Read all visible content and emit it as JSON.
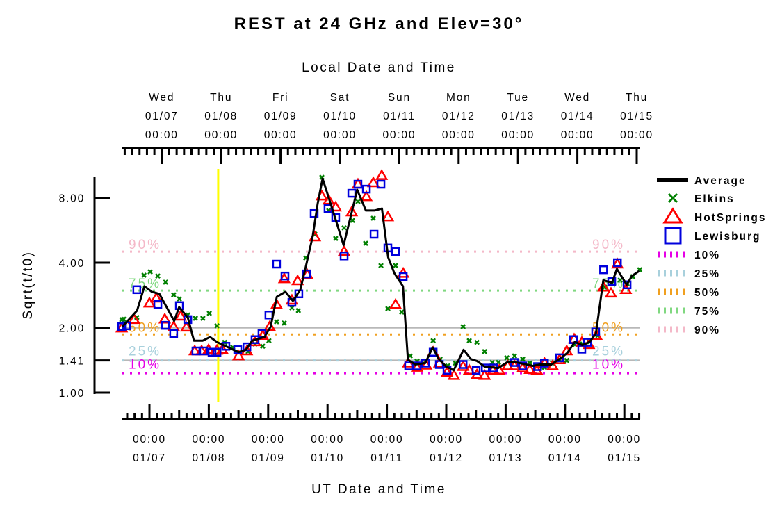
{
  "chart_data": {
    "type": "line",
    "title": "REST at 24 GHz and Elev=30°",
    "top_xlabel": "Local Date and Time",
    "xlabel": "UT Date and Time",
    "ylabel": "Sqrt(t/t0)",
    "yscale": "log",
    "xlim_hours": [
      -11,
      198
    ],
    "ylim": [
      1.0,
      9.9
    ],
    "yticks": [
      {
        "value": 8.0,
        "label": "8.00"
      },
      {
        "value": 4.0,
        "label": "4.00"
      },
      {
        "value": 2.0,
        "label": "2.00"
      },
      {
        "value": 1.41,
        "label": "1.41"
      },
      {
        "value": 1.0,
        "label": "1.00"
      }
    ],
    "top_ticks": [
      {
        "hour": 5,
        "day": "Wed",
        "date": "01/07",
        "time": "00:00"
      },
      {
        "hour": 29,
        "day": "Thu",
        "date": "01/08",
        "time": "00:00"
      },
      {
        "hour": 53,
        "day": "Fri",
        "date": "01/09",
        "time": "00:00"
      },
      {
        "hour": 77,
        "day": "Sat",
        "date": "01/10",
        "time": "00:00"
      },
      {
        "hour": 101,
        "day": "Sun",
        "date": "01/11",
        "time": "00:00"
      },
      {
        "hour": 125,
        "day": "Mon",
        "date": "01/12",
        "time": "00:00"
      },
      {
        "hour": 149,
        "day": "Tue",
        "date": "01/13",
        "time": "00:00"
      },
      {
        "hour": 173,
        "day": "Wed",
        "date": "01/14",
        "time": "00:00"
      },
      {
        "hour": 197,
        "day": "Thu",
        "date": "01/15",
        "time": "00:00"
      }
    ],
    "bottom_ticks": [
      {
        "hour": 0,
        "time": "00:00",
        "date": "01/07"
      },
      {
        "hour": 24,
        "time": "00:00",
        "date": "01/08"
      },
      {
        "hour": 48,
        "time": "00:00",
        "date": "01/09"
      },
      {
        "hour": 72,
        "time": "00:00",
        "date": "01/10"
      },
      {
        "hour": 96,
        "time": "00:00",
        "date": "01/11"
      },
      {
        "hour": 120,
        "time": "00:00",
        "date": "01/12"
      },
      {
        "hour": 144,
        "time": "00:00",
        "date": "01/13"
      },
      {
        "hour": 168,
        "time": "00:00",
        "date": "01/14"
      },
      {
        "hour": 192,
        "time": "00:00",
        "date": "01/15"
      }
    ],
    "reference_lines": [
      2.0,
      1.41
    ],
    "current_time_marker_hour": 27.8,
    "percentiles": [
      {
        "name": "10%",
        "label": "10%",
        "value": 1.23,
        "color": "#e600e6"
      },
      {
        "name": "25%",
        "label": "25%",
        "value": 1.41,
        "color": "#a8d0dc"
      },
      {
        "name": "50%",
        "label": "50%",
        "value": 1.86,
        "color": "#f0a020"
      },
      {
        "name": "75%",
        "label": "75%",
        "value": 2.97,
        "color": "#80d880"
      },
      {
        "name": "90%",
        "label": "90%",
        "value": 4.5,
        "color": "#f4b8c8"
      }
    ],
    "series": [
      {
        "name": "Average",
        "marker": "line",
        "color": "#000000",
        "points": [
          [
            -11,
            2.02
          ],
          [
            -5,
            2.4
          ],
          [
            -2,
            3.11
          ],
          [
            1,
            2.93
          ],
          [
            4,
            2.87
          ],
          [
            10,
            2.15
          ],
          [
            12,
            2.49
          ],
          [
            15.5,
            2.23
          ],
          [
            18,
            1.74
          ],
          [
            21.5,
            1.74
          ],
          [
            24.5,
            1.81
          ],
          [
            27.5,
            1.71
          ],
          [
            36,
            1.54
          ],
          [
            39,
            1.58
          ],
          [
            41.5,
            1.74
          ],
          [
            46.5,
            1.81
          ],
          [
            49,
            2.02
          ],
          [
            51.5,
            2.78
          ],
          [
            55,
            2.93
          ],
          [
            58,
            2.66
          ],
          [
            61,
            3.0
          ],
          [
            63,
            3.74
          ],
          [
            66,
            5.3
          ],
          [
            68,
            7.5
          ],
          [
            70,
            9.81
          ],
          [
            74.5,
            6.77
          ],
          [
            78.5,
            4.82
          ],
          [
            84,
            8.71
          ],
          [
            87.5,
            6.98
          ],
          [
            91,
            6.98
          ],
          [
            94,
            7.13
          ],
          [
            96.5,
            4.24
          ],
          [
            99,
            3.58
          ],
          [
            102.5,
            3.11
          ],
          [
            104.5,
            1.42
          ],
          [
            107.5,
            1.35
          ],
          [
            111.5,
            1.37
          ],
          [
            114.5,
            1.62
          ],
          [
            117,
            1.43
          ],
          [
            120,
            1.32
          ],
          [
            123,
            1.27
          ],
          [
            127,
            1.58
          ],
          [
            130,
            1.43
          ],
          [
            132.5,
            1.4
          ],
          [
            135.5,
            1.32
          ],
          [
            141,
            1.3
          ],
          [
            144.5,
            1.38
          ],
          [
            148.5,
            1.38
          ],
          [
            155,
            1.33
          ],
          [
            158,
            1.35
          ],
          [
            162.5,
            1.35
          ],
          [
            166.5,
            1.45
          ],
          [
            169,
            1.53
          ],
          [
            172,
            1.72
          ],
          [
            175,
            1.66
          ],
          [
            178,
            1.72
          ],
          [
            180.5,
            1.88
          ],
          [
            183.5,
            3.32
          ],
          [
            187,
            3.23
          ],
          [
            189,
            3.74
          ],
          [
            193,
            3.16
          ],
          [
            195,
            3.47
          ],
          [
            198,
            3.66
          ]
        ]
      },
      {
        "name": "Elkins",
        "marker": "x",
        "color": "#008000",
        "points": [
          [
            -11.2,
            2.18
          ],
          [
            -10.4,
            2.19
          ],
          [
            -5.1,
            2.23
          ],
          [
            -2.2,
            3.5
          ],
          [
            0.3,
            3.63
          ],
          [
            3.4,
            3.47
          ],
          [
            6.5,
            3.25
          ],
          [
            9.8,
            2.84
          ],
          [
            12.1,
            2.72
          ],
          [
            15.5,
            2.29
          ],
          [
            18.6,
            2.21
          ],
          [
            21.6,
            2.21
          ],
          [
            24.2,
            2.33
          ],
          [
            27.3,
            2.04
          ],
          [
            30.4,
            1.71
          ],
          [
            33.7,
            1.62
          ],
          [
            36.5,
            1.54
          ],
          [
            39.9,
            1.55
          ],
          [
            42.7,
            1.68
          ],
          [
            45.8,
            1.64
          ],
          [
            48.3,
            1.74
          ],
          [
            51.4,
            2.13
          ],
          [
            54.5,
            2.1
          ],
          [
            57.6,
            2.47
          ],
          [
            60.2,
            2.4
          ],
          [
            63.2,
            4.21
          ],
          [
            66.9,
            5.42
          ],
          [
            69.7,
            9.95
          ],
          [
            72.5,
            6.97
          ],
          [
            75.3,
            5.18
          ],
          [
            78.7,
            5.8
          ],
          [
            82.1,
            6.28
          ],
          [
            84.3,
            7.68
          ],
          [
            87.4,
            4.92
          ],
          [
            90.5,
            6.43
          ],
          [
            93.6,
            3.88
          ],
          [
            96.4,
            2.45
          ],
          [
            99.5,
            3.88
          ],
          [
            102.0,
            2.36
          ],
          [
            105.4,
            1.48
          ],
          [
            108.2,
            1.4
          ],
          [
            111.6,
            1.4
          ],
          [
            114.7,
            1.74
          ],
          [
            117.5,
            1.43
          ],
          [
            120.6,
            1.33
          ],
          [
            123.7,
            1.37
          ],
          [
            126.8,
            2.02
          ],
          [
            129.3,
            1.74
          ],
          [
            132.4,
            1.71
          ],
          [
            135.5,
            1.55
          ],
          [
            138.6,
            1.38
          ],
          [
            141.1,
            1.38
          ],
          [
            144.5,
            1.45
          ],
          [
            147.6,
            1.48
          ],
          [
            150.9,
            1.43
          ],
          [
            153.8,
            1.37
          ],
          [
            156.9,
            1.33
          ],
          [
            159.7,
            1.31
          ],
          [
            163.0,
            1.37
          ],
          [
            165.8,
            1.42
          ],
          [
            168.7,
            1.41
          ],
          [
            172.0,
            1.67
          ],
          [
            175.1,
            1.68
          ],
          [
            177.9,
            1.72
          ],
          [
            181.3,
            1.84
          ],
          [
            184.1,
            3.08
          ],
          [
            186.9,
            3.2
          ],
          [
            190.3,
            3.32
          ],
          [
            193.1,
            3.2
          ],
          [
            195.4,
            3.45
          ],
          [
            198.2,
            3.71
          ]
        ]
      },
      {
        "name": "HotSprings",
        "marker": "triangle",
        "color": "#ff0000",
        "points": [
          [
            -11.2,
            1.99
          ],
          [
            -6.2,
            2.18
          ],
          [
            0.0,
            2.6
          ],
          [
            2.8,
            2.74
          ],
          [
            6.2,
            2.19
          ],
          [
            9.8,
            2.02
          ],
          [
            12.6,
            2.26
          ],
          [
            14.9,
            2.01
          ],
          [
            18.3,
            1.56
          ],
          [
            21.1,
            1.56
          ],
          [
            23.9,
            1.58
          ],
          [
            27.3,
            1.57
          ],
          [
            29.5,
            1.58
          ],
          [
            36.0,
            1.48
          ],
          [
            39.4,
            1.56
          ],
          [
            42.7,
            1.72
          ],
          [
            45.8,
            1.84
          ],
          [
            48.6,
            2.02
          ],
          [
            51.4,
            2.56
          ],
          [
            54.5,
            3.37
          ],
          [
            57.6,
            2.68
          ],
          [
            59.9,
            3.3
          ],
          [
            63.8,
            3.52
          ],
          [
            66.9,
            5.26
          ],
          [
            69.7,
            8.14
          ],
          [
            72.5,
            7.79
          ],
          [
            75.3,
            7.24
          ],
          [
            78.7,
            4.5
          ],
          [
            81.8,
            6.87
          ],
          [
            84.3,
            9.24
          ],
          [
            87.7,
            8.08
          ],
          [
            90.5,
            9.38
          ],
          [
            93.9,
            10.13
          ],
          [
            96.4,
            6.52
          ],
          [
            99.5,
            2.56
          ],
          [
            102.6,
            3.57
          ],
          [
            104.6,
            1.37
          ],
          [
            108.2,
            1.31
          ],
          [
            111.9,
            1.34
          ],
          [
            114.7,
            1.54
          ],
          [
            117.2,
            1.37
          ],
          [
            120.3,
            1.24
          ],
          [
            123.1,
            1.2
          ],
          [
            126.8,
            1.32
          ],
          [
            129.3,
            1.27
          ],
          [
            132.4,
            1.21
          ],
          [
            135.5,
            1.2
          ],
          [
            138.9,
            1.27
          ],
          [
            141.4,
            1.27
          ],
          [
            144.8,
            1.33
          ],
          [
            147.6,
            1.33
          ],
          [
            150.9,
            1.3
          ],
          [
            153.8,
            1.28
          ],
          [
            156.6,
            1.27
          ],
          [
            159.7,
            1.37
          ],
          [
            163.0,
            1.33
          ],
          [
            165.8,
            1.42
          ],
          [
            168.7,
            1.56
          ],
          [
            171.7,
            1.77
          ],
          [
            174.8,
            1.71
          ],
          [
            177.7,
            1.67
          ],
          [
            180.7,
            1.84
          ],
          [
            183.6,
            3.08
          ],
          [
            186.6,
            2.89
          ],
          [
            189.2,
            3.94
          ],
          [
            192.6,
            3.0
          ]
        ]
      },
      {
        "name": "Lewisburg",
        "marker": "square",
        "color": "#0000dd",
        "points": [
          [
            -11.2,
            2.02
          ],
          [
            -9.3,
            2.04
          ],
          [
            -5.1,
            3.0
          ],
          [
            3.4,
            2.56
          ],
          [
            6.5,
            2.05
          ],
          [
            9.8,
            1.88
          ],
          [
            12.1,
            2.53
          ],
          [
            15.5,
            2.18
          ],
          [
            18.8,
            1.56
          ],
          [
            21.9,
            1.56
          ],
          [
            25.3,
            1.54
          ],
          [
            27.3,
            1.54
          ],
          [
            30.9,
            1.64
          ],
          [
            35.7,
            1.58
          ],
          [
            39.4,
            1.63
          ],
          [
            42.7,
            1.76
          ],
          [
            45.5,
            1.88
          ],
          [
            48.3,
            2.29
          ],
          [
            51.4,
            3.94
          ],
          [
            54.8,
            3.47
          ],
          [
            57.6,
            2.62
          ],
          [
            60.4,
            2.87
          ],
          [
            63.5,
            3.55
          ],
          [
            66.6,
            6.76
          ],
          [
            72.2,
            7.12
          ],
          [
            75.3,
            6.47
          ],
          [
            78.7,
            4.3
          ],
          [
            81.8,
            8.39
          ],
          [
            84.3,
            9.24
          ],
          [
            87.7,
            8.77
          ],
          [
            90.8,
            5.42
          ],
          [
            93.6,
            9.24
          ],
          [
            96.4,
            4.68
          ],
          [
            99.5,
            4.5
          ],
          [
            102.6,
            3.45
          ],
          [
            104.8,
            1.33
          ],
          [
            108.2,
            1.33
          ],
          [
            111.6,
            1.37
          ],
          [
            114.7,
            1.54
          ],
          [
            117.2,
            1.35
          ],
          [
            120.3,
            1.27
          ],
          [
            126.8,
            1.35
          ],
          [
            132.1,
            1.27
          ],
          [
            135.8,
            1.3
          ],
          [
            139.1,
            1.3
          ],
          [
            147.6,
            1.38
          ],
          [
            150.9,
            1.33
          ],
          [
            156.9,
            1.32
          ],
          [
            159.7,
            1.37
          ],
          [
            165.8,
            1.45
          ],
          [
            171.5,
            1.76
          ],
          [
            174.8,
            1.59
          ],
          [
            177.1,
            1.71
          ],
          [
            180.4,
            1.91
          ],
          [
            183.6,
            3.71
          ],
          [
            186.9,
            3.27
          ],
          [
            189.2,
            4.0
          ],
          [
            193.1,
            3.16
          ]
        ]
      }
    ]
  }
}
